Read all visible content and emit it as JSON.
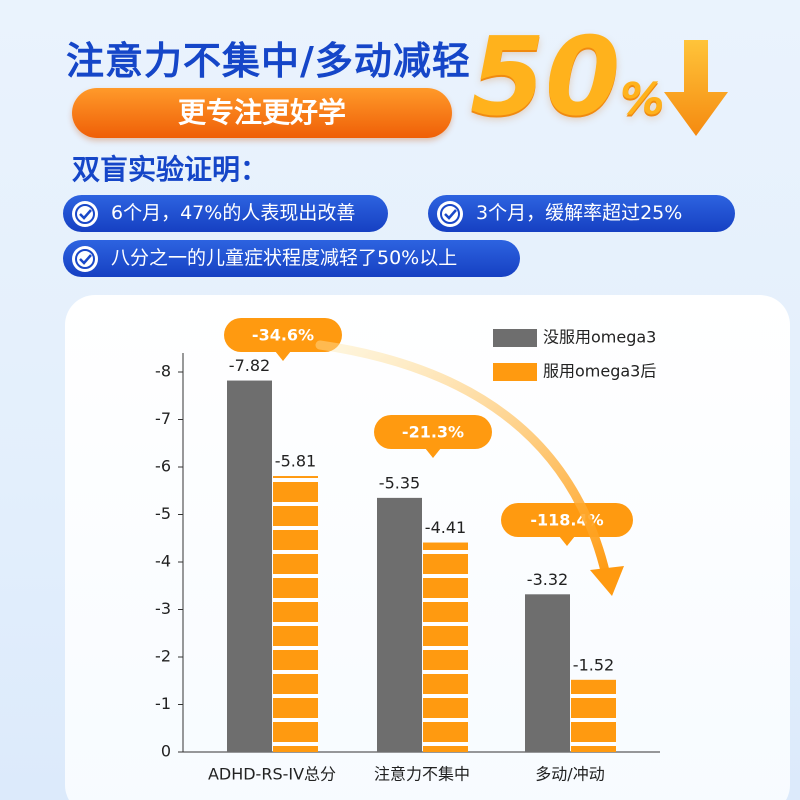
{
  "header": {
    "title": "注意力不集中/多动减轻",
    "big_number": "50",
    "big_unit": "%",
    "slogan": "更专注更好学",
    "subtitle": "双盲实验证明：",
    "claims": [
      "6个月，47%的人表现出改善",
      "3个月，缓解率超过25%",
      "八分之一的儿童症状程度减轻了50%以上"
    ]
  },
  "chart_data": {
    "type": "bar",
    "categories": [
      "ADHD-RS-IV总分",
      "注意力不集中",
      "多动/冲动"
    ],
    "series": [
      {
        "name": "没服用omega3",
        "color": "#6e6e6e",
        "values": [
          -7.82,
          -5.35,
          -3.32
        ]
      },
      {
        "name": "服用omega3后",
        "color": "#ff9a10",
        "values": [
          -5.81,
          -4.41,
          -1.52
        ]
      }
    ],
    "annotations": [
      "-34.6%",
      "-21.3%",
      "-118.4%"
    ],
    "ylim": [
      0,
      -8.4
    ],
    "yticks": [
      0,
      -1,
      -2,
      -3,
      -4,
      -5,
      -6,
      -7,
      -8
    ],
    "legend": "top-right"
  }
}
